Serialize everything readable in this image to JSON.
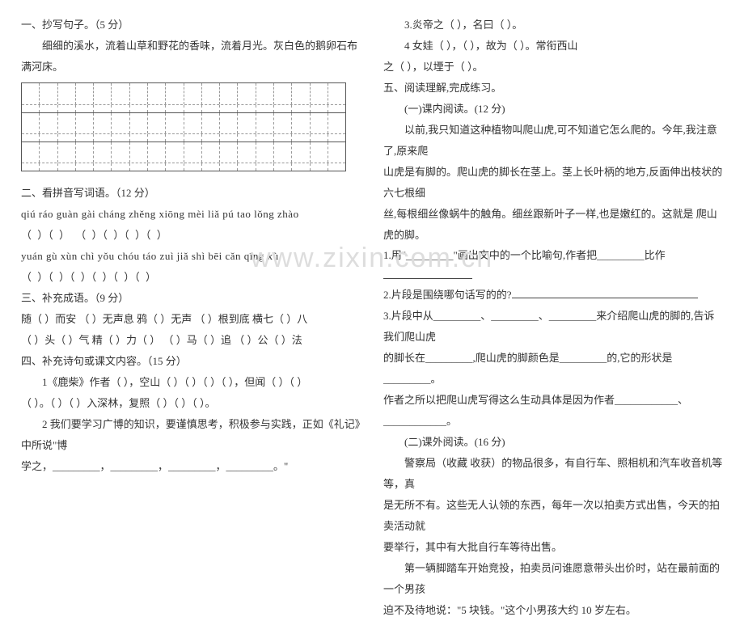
{
  "watermark": "www.zixin.com.cn",
  "left": {
    "sec1_title": "一、抄写句子。（5 分）",
    "sec1_sentence": "细细的溪水，流着山草和野花的香味，流着月光。灰白色的鹅卵石布满河床。",
    "sec2_title": "二、看拼音写词语。（12 分）",
    "pinyin_row1": "qiú   ráo    guàn  gài     cháng  zhěng  xiōng  mèi   liǎ    pú   tao   lǒng  zhào",
    "paren_row1": "（        ）（        ）   （        ）（        ）（        ）（        ）",
    "pinyin_row2": "yuán  gù   xùn  chì     yǒu  chóu   táo  zuì  jiǎ   shì       bēi  cǎn    qīng   xù",
    "paren_row2": "（        ）（        ）（        ）（        ）（        ）（        ）",
    "sec3_title": "三、补充成语。（9 分）",
    "sec3_line1": "随（     ）而安     （     ）无声息    鸦（     ）无声     （     ）根到底    横七（     ）八",
    "sec3_line2": "（     ）头（     ）气    精（     ）力（     ）     （     ）马（     ）追     （     ）公（     ）法",
    "sec4_title": "四、补充诗句或课文内容。（15 分）",
    "sec4_q1": "1《鹿柴》作者（            ），空山（     ）（     ）（     ）（     ），但闻（     ）（     ）",
    "sec4_q1b": "（     ）。（     ）（     ）入深林，复照（     ）（     ）（     ）。",
    "sec4_q2a": "2 我们要学习广博的知识，要谨慎思考，积极参与实践，正如《礼记》中所说\"博",
    "sec4_q2b": "学之，_________，_________，_________，_________。\""
  },
  "right": {
    "q3": "3.炎帝之（                       ），名曰（                 ）。",
    "q4a": "4 女娃（                       ），（                        ），故为（               ）。常衔西山",
    "q4b": "之（                 ），以堙于（                ）。",
    "sec5_title": "五、阅读理解,完成练习。",
    "part1_title": "(一)课内阅读。(12 分)",
    "p1_para1": "以前,我只知道这种植物叫爬山虎,可不知道它怎么爬的。今年,我注意了,原来爬",
    "p1_para2": "山虎是有脚的。爬山虎的脚长在茎上。茎上长叶柄的地方,反面伸出枝状的六七根细",
    "p1_para3": "丝,每根细丝像蜗牛的触角。细丝跟新叶子一样,也是嫩红的。这就是 爬山虎的脚。",
    "p1_q1": "1.用\"_________\"画出文中的一个比喻句,作者把_________比作",
    "p1_q2": "2.片段是围绕哪句话写的的?",
    "p1_q3a": "3.片段中从_________、_________、_________来介绍爬山虎的脚的,告诉我们爬山虎",
    "p1_q3b": "的脚长在_________,爬山虎的脚颜色是_________的,它的形状是_________。",
    "p1_q3c": "作者之所以把爬山虎写得这么生动具体是因为作者____________、____________。",
    "part2_title": "(二)课外阅读。(16 分)",
    "p2_para1": "警察局（收藏    收获）的物品很多，有自行车、照相机和汽车收音机等等，真",
    "p2_para2": "是无所不有。这些无人认领的东西，每年一次以拍卖方式出售，今天的拍卖活动就",
    "p2_para3": "要举行，其中有大批自行车等待出售。",
    "p2_para4": "第一辆脚踏车开始竞投，拍卖员问谁愿意带头出价时，站在最前面的一个男孩",
    "p2_para5": "迫不及待地说：\"5 块钱。\"这个小男孩大约 10 岁左右。"
  },
  "grid": {
    "cols": 18,
    "rows": 3
  }
}
